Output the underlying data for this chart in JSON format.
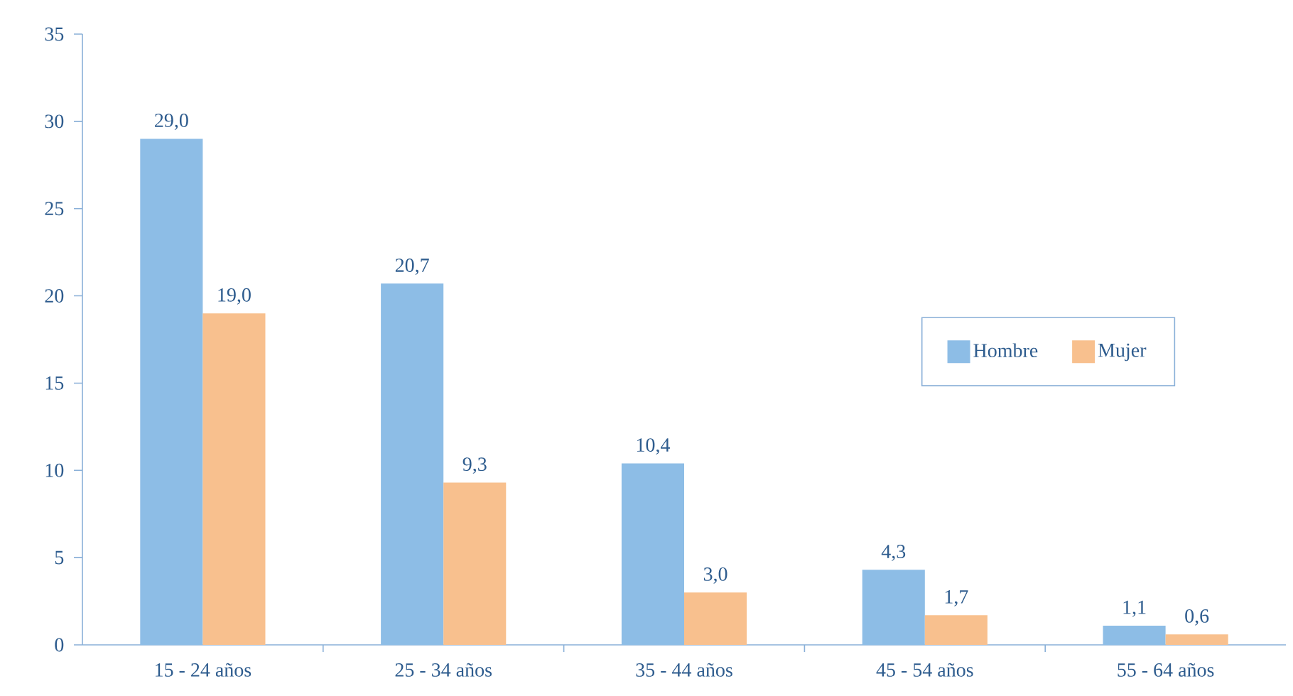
{
  "chart_data": {
    "type": "bar",
    "categories": [
      "15 - 24 años",
      "25 - 34 años",
      "35 - 44 años",
      "45 - 54 años",
      "55 - 64 años"
    ],
    "series": [
      {
        "name": "Hombre",
        "color": "#8dbde6",
        "values": [
          29.0,
          20.7,
          10.4,
          4.3,
          1.1
        ],
        "value_labels": [
          "29,0",
          "20,7",
          "10,4",
          "4,3",
          "1,1"
        ]
      },
      {
        "name": "Mujer",
        "color": "#f8c08e",
        "values": [
          19.0,
          9.3,
          3.0,
          1.7,
          0.6
        ],
        "value_labels": [
          "19,0",
          "9,3",
          "3,0",
          "1,7",
          "0,6"
        ]
      }
    ],
    "ylim": [
      0,
      35
    ],
    "yticks": [
      0,
      5,
      10,
      15,
      20,
      25,
      30,
      35
    ],
    "legend": "right"
  }
}
